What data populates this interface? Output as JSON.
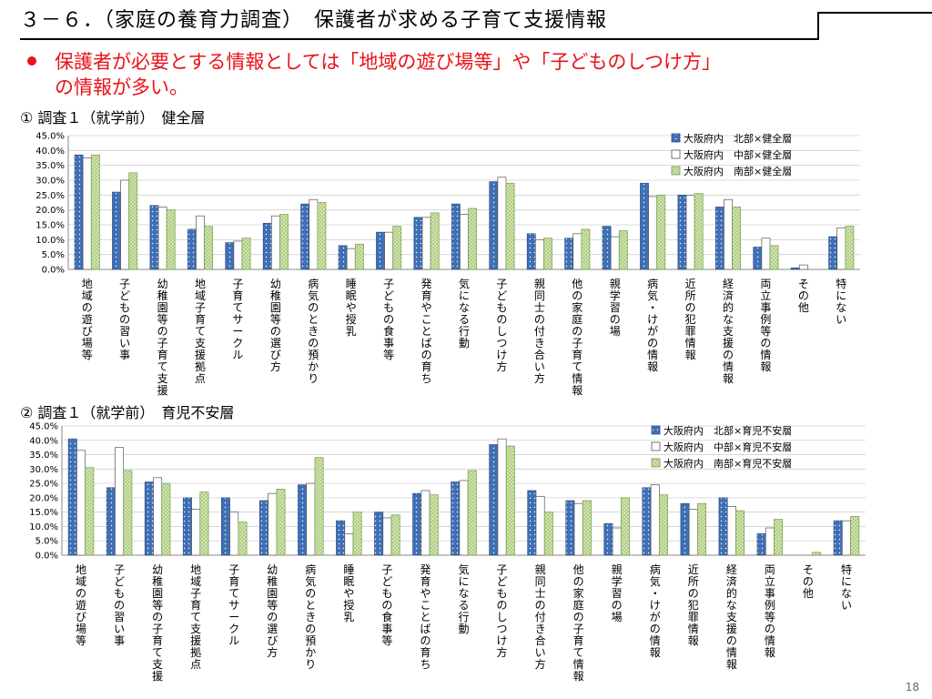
{
  "header": {
    "title": "３－６．（家庭の養育力調査）　保護者が求める子育て支援情報",
    "bullet_line1": "保護者が必要とする情報としては「地域の遊び場等」や「子どものしつけ方」",
    "bullet_line2": "の情報が多い。"
  },
  "sections": {
    "chart1_heading": "① 調査１（就学前）　健全層",
    "chart2_heading": "② 調査１（就学前）　育児不安層"
  },
  "page_number": "18",
  "colors": {
    "north": "#3f6fb5",
    "middle": "#ffffff",
    "south": "#d4e7b5",
    "bullet": "#e8121a"
  },
  "chart_data": [
    {
      "type": "bar",
      "ylim": [
        0,
        45
      ],
      "yticks": [
        "0.0%",
        "5.0%",
        "10.0%",
        "15.0%",
        "20.0%",
        "25.0%",
        "30.0%",
        "35.0%",
        "40.0%",
        "45.0%"
      ],
      "categories": [
        "地域の遊び場等",
        "子どもの習い事",
        "幼稚園等の子育て支援",
        "地域子育て支援拠点",
        "子育てサークル",
        "幼稚園等の選び方",
        "病気のときの預かり",
        "睡眠や授乳",
        "子どもの食事等",
        "発育やことばの育ち",
        "気になる行動",
        "子どものしつけ方",
        "親同士の付き合い方",
        "他の家庭の子育て情報",
        "親学習の場",
        "病気・けがの情報",
        "近所の犯罪情報",
        "経済的な支援の情報",
        "両立事例等の情報",
        "その他",
        "特にない"
      ],
      "series": [
        {
          "name": "大阪府内　北部×健全層",
          "values": [
            38.5,
            26,
            21.5,
            13.5,
            9,
            15.5,
            22,
            8,
            12.5,
            17.5,
            22,
            29.5,
            12,
            10.5,
            14.5,
            29,
            25,
            21,
            7.5,
            0.5,
            11
          ]
        },
        {
          "name": "大阪府内　中部×健全層",
          "values": [
            37.5,
            30,
            21,
            18,
            9.5,
            18,
            23.5,
            7,
            12.5,
            17.5,
            18.5,
            31,
            10,
            12,
            11,
            24.5,
            25,
            23.5,
            10.5,
            1.5,
            14
          ]
        },
        {
          "name": "大阪府内　南部×健全層",
          "values": [
            38.5,
            32.5,
            20,
            14.5,
            10.5,
            18.5,
            22.5,
            8.5,
            14.5,
            19,
            20.5,
            29,
            10.5,
            13.5,
            13,
            25,
            25.5,
            21,
            8,
            0,
            14.5
          ]
        }
      ]
    },
    {
      "type": "bar",
      "ylim": [
        0,
        45
      ],
      "yticks": [
        "0.0%",
        "5.0%",
        "10.0%",
        "15.0%",
        "20.0%",
        "25.0%",
        "30.0%",
        "35.0%",
        "40.0%",
        "45.0%"
      ],
      "categories": [
        "地域の遊び場等",
        "子どもの習い事",
        "幼稚園等の子育て支援",
        "地域子育て支援拠点",
        "子育てサークル",
        "幼稚園等の選び方",
        "病気のときの預かり",
        "睡眠や授乳",
        "子どもの食事等",
        "発育やことばの育ち",
        "気になる行動",
        "子どものしつけ方",
        "親同士の付き合い方",
        "他の家庭の子育て情報",
        "親学習の場",
        "病気・けがの情報",
        "近所の犯罪情報",
        "経済的な支援の情報",
        "両立事例等の情報",
        "その他",
        "特にない"
      ],
      "series": [
        {
          "name": "大阪府内　北部×育児不安層",
          "values": [
            40.5,
            23.5,
            25.5,
            20,
            20,
            19,
            24.5,
            12,
            15,
            21.5,
            25.5,
            38.5,
            22.5,
            19,
            11,
            23.5,
            18,
            20,
            7.5,
            0,
            12
          ]
        },
        {
          "name": "大阪府内　中部×育児不安層",
          "values": [
            36.5,
            37.5,
            27,
            16,
            15,
            21.5,
            25,
            7.5,
            13,
            22.5,
            26,
            40.5,
            20.5,
            18,
            9.5,
            24.5,
            16,
            17,
            9.5,
            0,
            12
          ]
        },
        {
          "name": "大阪府内　南部×育児不安層",
          "values": [
            30.5,
            29.5,
            25,
            22,
            11.5,
            23,
            34,
            15,
            14,
            21,
            29.5,
            38,
            15,
            19,
            20,
            21,
            18,
            15.5,
            12.5,
            1,
            13.5
          ]
        }
      ]
    }
  ]
}
